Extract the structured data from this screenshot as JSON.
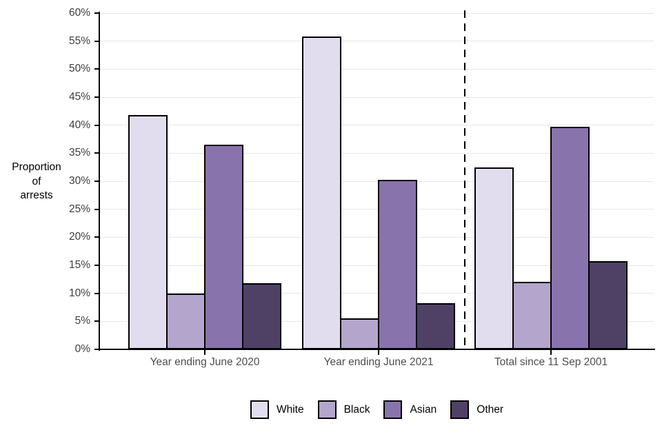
{
  "chart_data": {
    "type": "bar",
    "title": "",
    "ylabel": "Proportion of arrests",
    "ylabel_lines": [
      "Proportion",
      "of",
      "arrests"
    ],
    "xlabel": "",
    "categories": [
      "Year ending June 2020",
      "Year ending June 2021",
      "Total since 11 Sep 2001"
    ],
    "series": [
      {
        "name": "White",
        "color": "#e2ddee",
        "values": [
          41.8,
          55.8,
          32.5
        ]
      },
      {
        "name": "Black",
        "color": "#b4a5cd",
        "values": [
          10.0,
          5.5,
          12.0
        ]
      },
      {
        "name": "Asian",
        "color": "#8973ad",
        "values": [
          36.5,
          30.3,
          39.7
        ]
      },
      {
        "name": "Other",
        "color": "#4f4166",
        "values": [
          11.8,
          8.2,
          15.7
        ]
      }
    ],
    "ylim": [
      0,
      60
    ],
    "ytick_step": 5,
    "ytick_labels": [
      "0%",
      "5%",
      "10%",
      "15%",
      "20%",
      "25%",
      "30%",
      "35%",
      "40%",
      "45%",
      "50%",
      "55%",
      "60%"
    ],
    "grid": true,
    "legend_position": "bottom",
    "separator_note": "dashed vertical line between 'Year ending June 2021' and 'Total since 11 Sep 2001'",
    "colors": {
      "bar_outline": "#000000",
      "gridline": "#e6e6e6",
      "axis_line": "#000000",
      "tick_text": "#3d3d3d",
      "category_text": "#4d4d4d",
      "axis_title_text": "#000000",
      "background": "#ffffff"
    }
  }
}
